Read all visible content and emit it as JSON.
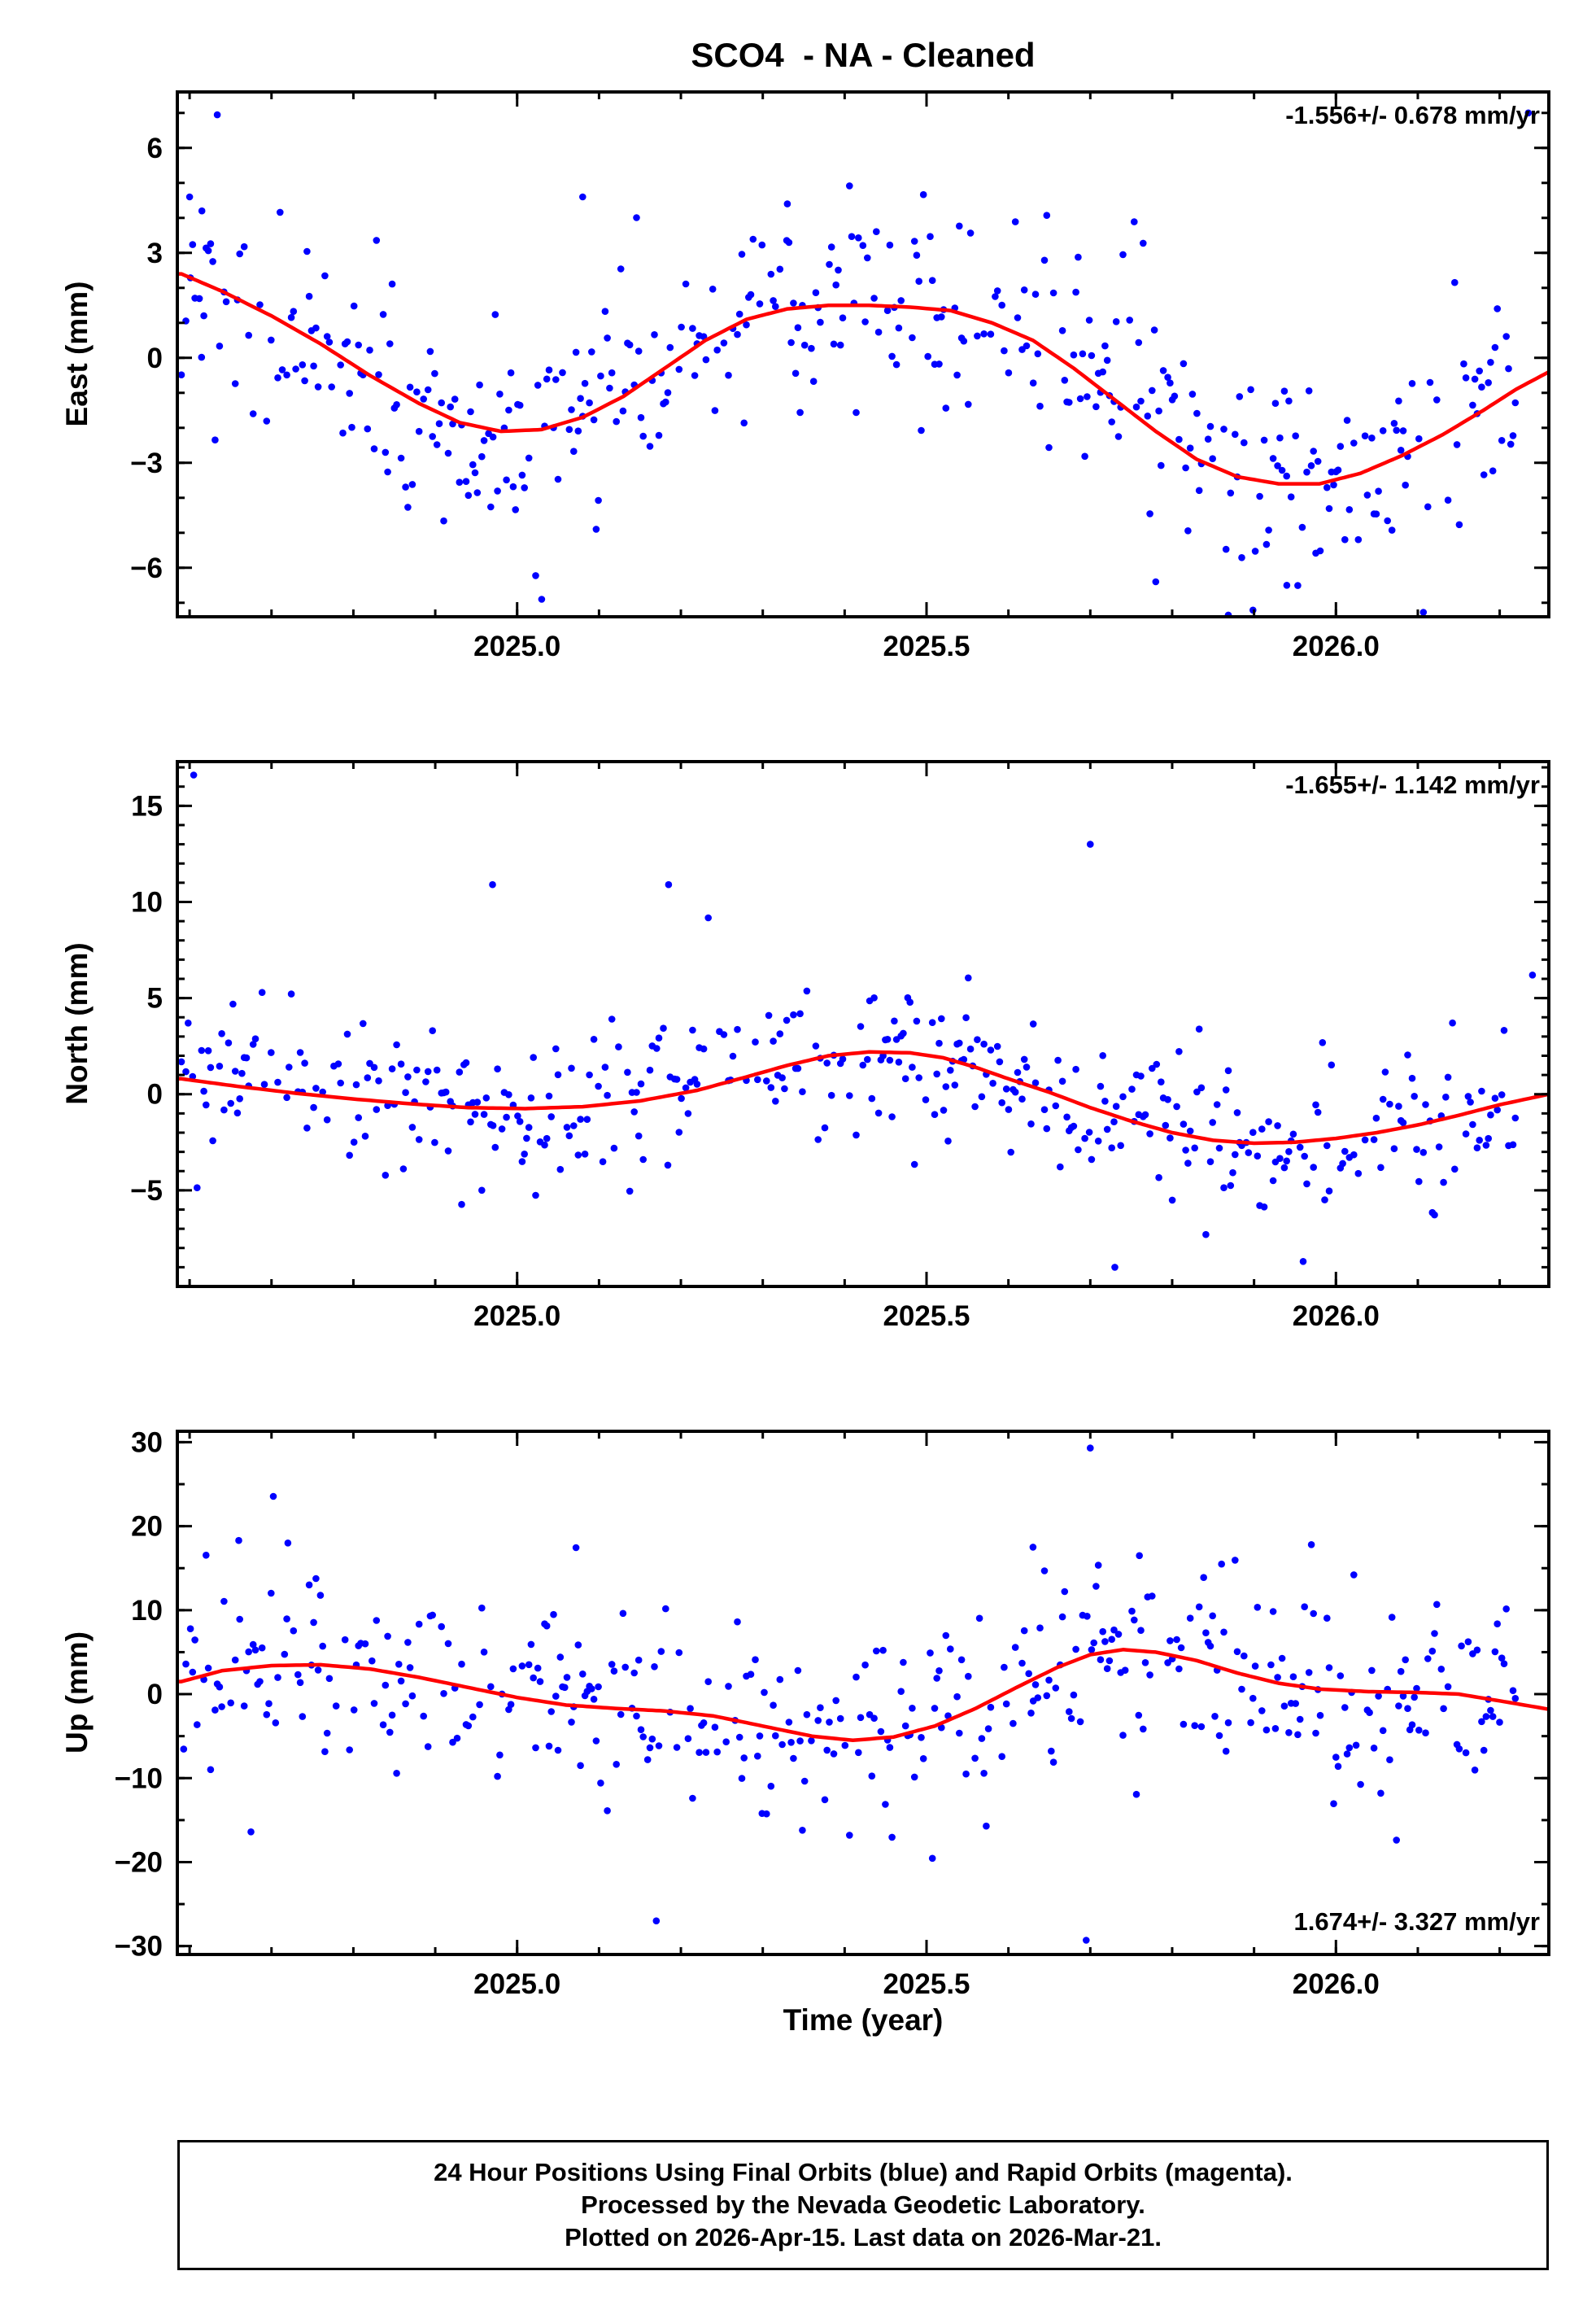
{
  "title": "SCO4  - NA - Cleaned",
  "xlabel": "Time (year)",
  "caption": {
    "line1": "24 Hour Positions Using Final Orbits (blue) and Rapid Orbits (magenta).",
    "line2": "Processed by the Nevada Geodetic Laboratory.",
    "line3": "Plotted on 2026-Apr-15. Last data on 2026-Mar-21."
  },
  "colors": {
    "points_final": "#0000ff",
    "points_rapid": "#ff00ff",
    "model_curve": "#ff0000",
    "frame": "#000000",
    "text": "#000000",
    "background": "#ffffff"
  },
  "chart_data": [
    {
      "type": "scatter",
      "name": "east",
      "ylabel": "East (mm)",
      "trend_label": "-1.556+/- 0.678 mm/yr",
      "trend_label_corner": "top-right",
      "xlim": [
        2024.585,
        2026.26
      ],
      "ylim": [
        -7.4,
        7.6
      ],
      "xtick_values": [
        2025.0,
        2025.5,
        2026.0
      ],
      "xtick_labels": [
        "2025.0",
        "2025.5",
        "2026.0"
      ],
      "ytick_values": [
        -6,
        -3,
        0,
        3,
        6
      ],
      "ytick_labels": [
        "−6",
        "−3",
        "0",
        "3",
        "6"
      ],
      "x_minor_step": 0.1,
      "y_minor_step": 1,
      "curve": [
        [
          2024.59,
          2.4
        ],
        [
          2024.64,
          1.9
        ],
        [
          2024.7,
          1.2
        ],
        [
          2024.76,
          0.4
        ],
        [
          2024.82,
          -0.5
        ],
        [
          2024.88,
          -1.3
        ],
        [
          2024.93,
          -1.85
        ],
        [
          2024.98,
          -2.1
        ],
        [
          2025.03,
          -2.05
        ],
        [
          2025.08,
          -1.7
        ],
        [
          2025.13,
          -1.1
        ],
        [
          2025.18,
          -0.3
        ],
        [
          2025.23,
          0.5
        ],
        [
          2025.28,
          1.1
        ],
        [
          2025.33,
          1.4
        ],
        [
          2025.38,
          1.5
        ],
        [
          2025.43,
          1.5
        ],
        [
          2025.48,
          1.45
        ],
        [
          2025.53,
          1.35
        ],
        [
          2025.58,
          1.0
        ],
        [
          2025.63,
          0.5
        ],
        [
          2025.68,
          -0.3
        ],
        [
          2025.73,
          -1.2
        ],
        [
          2025.78,
          -2.1
        ],
        [
          2025.83,
          -2.9
        ],
        [
          2025.88,
          -3.4
        ],
        [
          2025.93,
          -3.6
        ],
        [
          2025.98,
          -3.6
        ],
        [
          2026.03,
          -3.3
        ],
        [
          2026.08,
          -2.8
        ],
        [
          2026.13,
          -2.2
        ],
        [
          2026.18,
          -1.5
        ],
        [
          2026.22,
          -0.9
        ],
        [
          2026.26,
          -0.4
        ]
      ],
      "scatter_spec": {
        "seed": 12,
        "t_start": 2024.59,
        "t_end": 2026.22,
        "dropout": 0.28,
        "sigma": 1.45,
        "tail_prob": 0.06,
        "tail_mult": 2.0
      },
      "outliers": [
        [
          2025.03,
          -6.9
        ],
        [
          2026.235,
          7.0
        ],
        [
          2025.78,
          -6.4
        ],
        [
          2025.94,
          -6.5
        ],
        [
          2024.6,
          4.6
        ],
        [
          2025.08,
          4.6
        ],
        [
          2024.615,
          4.2
        ],
        [
          2025.33,
          4.4
        ]
      ]
    },
    {
      "type": "scatter",
      "name": "north",
      "ylabel": "North (mm)",
      "trend_label": "-1.655+/- 1.142 mm/yr",
      "trend_label_corner": "top-right",
      "xlim": [
        2024.585,
        2026.26
      ],
      "ylim": [
        -10.0,
        17.3
      ],
      "xtick_values": [
        2025.0,
        2025.5,
        2026.0
      ],
      "xtick_labels": [
        "2025.0",
        "2025.5",
        "2026.0"
      ],
      "ytick_values": [
        -5,
        0,
        5,
        10,
        15
      ],
      "ytick_labels": [
        "−5",
        "0",
        "5",
        "10",
        "15"
      ],
      "x_minor_step": 0.1,
      "y_minor_step": 1,
      "curve": [
        [
          2024.59,
          0.8
        ],
        [
          2024.66,
          0.4
        ],
        [
          2024.73,
          0.05
        ],
        [
          2024.8,
          -0.25
        ],
        [
          2024.87,
          -0.5
        ],
        [
          2024.94,
          -0.7
        ],
        [
          2025.01,
          -0.75
        ],
        [
          2025.08,
          -0.65
        ],
        [
          2025.15,
          -0.35
        ],
        [
          2025.22,
          0.2
        ],
        [
          2025.28,
          0.9
        ],
        [
          2025.33,
          1.5
        ],
        [
          2025.38,
          2.0
        ],
        [
          2025.43,
          2.2
        ],
        [
          2025.48,
          2.15
        ],
        [
          2025.52,
          1.9
        ],
        [
          2025.56,
          1.4
        ],
        [
          2025.6,
          0.8
        ],
        [
          2025.65,
          0.1
        ],
        [
          2025.7,
          -0.7
        ],
        [
          2025.75,
          -1.4
        ],
        [
          2025.8,
          -2.0
        ],
        [
          2025.85,
          -2.4
        ],
        [
          2025.9,
          -2.55
        ],
        [
          2025.95,
          -2.5
        ],
        [
          2026.0,
          -2.3
        ],
        [
          2026.05,
          -2.0
        ],
        [
          2026.1,
          -1.6
        ],
        [
          2026.15,
          -1.1
        ],
        [
          2026.2,
          -0.55
        ],
        [
          2026.26,
          0.0
        ]
      ],
      "scatter_spec": {
        "seed": 34,
        "t_start": 2024.59,
        "t_end": 2026.22,
        "dropout": 0.28,
        "sigma": 1.9,
        "tail_prob": 0.06,
        "tail_mult": 2.0
      },
      "outliers": [
        [
          2024.605,
          16.6
        ],
        [
          2024.97,
          10.9
        ],
        [
          2025.185,
          10.9
        ],
        [
          2025.7,
          13.0
        ],
        [
          2025.73,
          -9.0
        ],
        [
          2025.96,
          -8.7
        ],
        [
          2026.24,
          6.2
        ]
      ]
    },
    {
      "type": "scatter",
      "name": "up",
      "ylabel": "Up (mm)",
      "trend_label": "1.674+/- 3.327 mm/yr",
      "trend_label_corner": "bottom-right",
      "xlim": [
        2024.585,
        2026.26
      ],
      "ylim": [
        -31.0,
        31.3
      ],
      "xtick_values": [
        2025.0,
        2025.5,
        2026.0
      ],
      "xtick_labels": [
        "2025.0",
        "2025.5",
        "2026.0"
      ],
      "ytick_values": [
        -30,
        -20,
        -10,
        0,
        10,
        20,
        30
      ],
      "ytick_labels": [
        "−30",
        "−20",
        "−10",
        "0",
        "10",
        "20",
        "30"
      ],
      "x_minor_step": 0.1,
      "y_minor_step": 5,
      "curve": [
        [
          2024.59,
          1.5
        ],
        [
          2024.64,
          2.8
        ],
        [
          2024.7,
          3.4
        ],
        [
          2024.76,
          3.5
        ],
        [
          2024.82,
          3.0
        ],
        [
          2024.88,
          2.0
        ],
        [
          2024.94,
          0.8
        ],
        [
          2025.0,
          -0.4
        ],
        [
          2025.06,
          -1.3
        ],
        [
          2025.12,
          -1.7
        ],
        [
          2025.18,
          -2.0
        ],
        [
          2025.24,
          -2.6
        ],
        [
          2025.3,
          -3.8
        ],
        [
          2025.36,
          -5.0
        ],
        [
          2025.41,
          -5.5
        ],
        [
          2025.46,
          -5.1
        ],
        [
          2025.51,
          -3.8
        ],
        [
          2025.56,
          -1.7
        ],
        [
          2025.61,
          0.8
        ],
        [
          2025.66,
          3.2
        ],
        [
          2025.7,
          4.7
        ],
        [
          2025.74,
          5.3
        ],
        [
          2025.78,
          5.0
        ],
        [
          2025.83,
          4.0
        ],
        [
          2025.88,
          2.5
        ],
        [
          2025.93,
          1.3
        ],
        [
          2025.98,
          0.6
        ],
        [
          2026.04,
          0.3
        ],
        [
          2026.1,
          0.2
        ],
        [
          2026.15,
          0.0
        ],
        [
          2026.2,
          -0.8
        ],
        [
          2026.26,
          -1.8
        ]
      ],
      "scatter_spec": {
        "seed": 56,
        "t_start": 2024.59,
        "t_end": 2026.22,
        "dropout": 0.28,
        "sigma": 5.6,
        "tail_prob": 0.06,
        "tail_mult": 1.9
      },
      "outliers": [
        [
          2025.7,
          29.3
        ],
        [
          2025.695,
          -29.3
        ],
        [
          2025.17,
          -27.0
        ],
        [
          2024.66,
          18.3
        ],
        [
          2024.72,
          18.0
        ],
        [
          2025.97,
          17.8
        ],
        [
          2025.63,
          17.5
        ],
        [
          2025.76,
          16.5
        ]
      ]
    }
  ]
}
